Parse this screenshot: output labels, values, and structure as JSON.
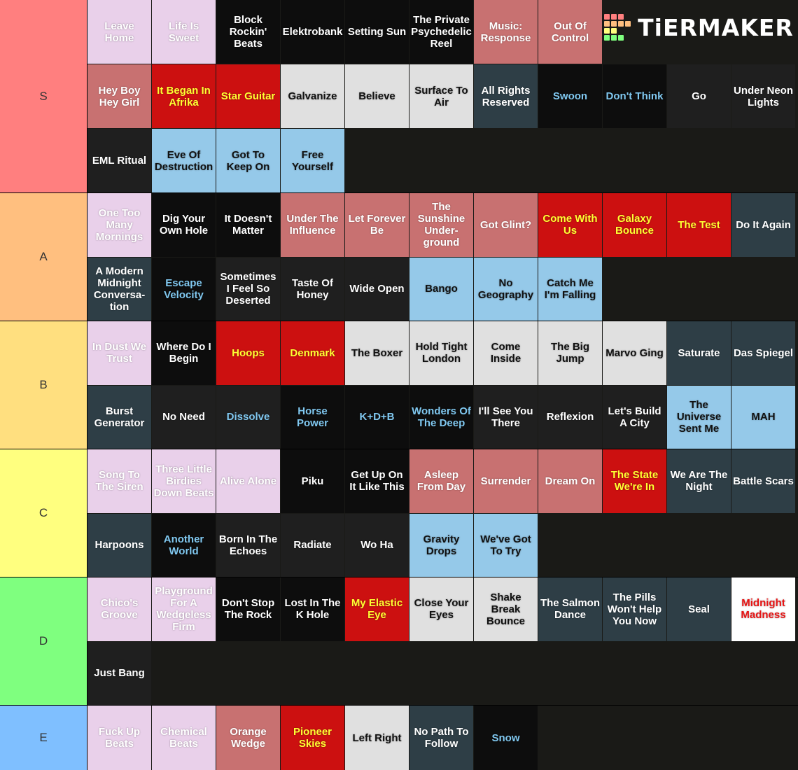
{
  "logo": "TiERMAKER",
  "tiers": [
    {
      "label": "S",
      "color": "#ff7f7f",
      "rows": [
        [
          {
            "text": "Leave Home",
            "bg": "#e9d0ea",
            "fg": "#ffffff"
          },
          {
            "text": "Life Is Sweet",
            "bg": "#e9d0ea",
            "fg": "#ffffff"
          },
          {
            "text": "Block Rockin' Beats",
            "bg": "#0d0d0d",
            "fg": "#ffffff"
          },
          {
            "text": "Elektrobank",
            "bg": "#0d0d0d",
            "fg": "#ffffff"
          },
          {
            "text": "Setting Sun",
            "bg": "#0d0d0d",
            "fg": "#ffffff"
          },
          {
            "text": "The Private Psychedelic Reel",
            "bg": "#0d0d0d",
            "fg": "#ffffff"
          },
          {
            "text": "Music: Response",
            "bg": "#c87171",
            "fg": "#ffffff"
          },
          {
            "text": "Out Of Control",
            "bg": "#c87171",
            "fg": "#ffffff"
          }
        ],
        [
          {
            "text": "Hey Boy Hey Girl",
            "bg": "#c87171",
            "fg": "#ffffff"
          },
          {
            "text": "It Began In Afrika",
            "bg": "#cc1010",
            "fg": "#ffff33"
          },
          {
            "text": "Star Guitar",
            "bg": "#cc1010",
            "fg": "#ffff33"
          },
          {
            "text": "Galvanize",
            "bg": "#e0e0e0",
            "fg": "#111111"
          },
          {
            "text": "Believe",
            "bg": "#e0e0e0",
            "fg": "#111111"
          },
          {
            "text": "Surface To Air",
            "bg": "#e0e0e0",
            "fg": "#111111"
          },
          {
            "text": "All Rights Reserved",
            "bg": "#2e3e46",
            "fg": "#ffffff"
          },
          {
            "text": "Swoon",
            "bg": "#0d0d0d",
            "fg": "#80c8f0"
          },
          {
            "text": "Don't Think",
            "bg": "#0d0d0d",
            "fg": "#80c8f0"
          },
          {
            "text": "Go",
            "bg": "#1f1f1f",
            "fg": "#ffffff"
          },
          {
            "text": "Under Neon Lights",
            "bg": "#1f1f1f",
            "fg": "#ffffff"
          }
        ],
        [
          {
            "text": "EML Ritual",
            "bg": "#1f1f1f",
            "fg": "#ffffff"
          },
          {
            "text": "Eve Of Destruction",
            "bg": "#95c9e9",
            "fg": "#111111"
          },
          {
            "text": "Got To Keep On",
            "bg": "#95c9e9",
            "fg": "#111111"
          },
          {
            "text": "Free Yourself",
            "bg": "#95c9e9",
            "fg": "#111111"
          }
        ]
      ]
    },
    {
      "label": "A",
      "color": "#ffbf7f",
      "rows": [
        [
          {
            "text": "One Too Many Mornings",
            "bg": "#e9d0ea",
            "fg": "#ffffff"
          },
          {
            "text": "Dig Your Own Hole",
            "bg": "#0d0d0d",
            "fg": "#ffffff"
          },
          {
            "text": "It Doesn't Matter",
            "bg": "#0d0d0d",
            "fg": "#ffffff"
          },
          {
            "text": "Under The Influence",
            "bg": "#c87171",
            "fg": "#ffffff"
          },
          {
            "text": "Let Forever Be",
            "bg": "#c87171",
            "fg": "#ffffff"
          },
          {
            "text": "The Sunshine Under­ground",
            "bg": "#c87171",
            "fg": "#ffffff"
          },
          {
            "text": "Got Glint?",
            "bg": "#c87171",
            "fg": "#ffffff"
          },
          {
            "text": "Come With Us",
            "bg": "#cc1010",
            "fg": "#ffff33"
          },
          {
            "text": "Galaxy Bounce",
            "bg": "#cc1010",
            "fg": "#ffff33"
          },
          {
            "text": "The Test",
            "bg": "#cc1010",
            "fg": "#ffff33"
          },
          {
            "text": "Do It Again",
            "bg": "#2e3e46",
            "fg": "#ffffff"
          }
        ],
        [
          {
            "text": "A Modern Midnight Conversa­tion",
            "bg": "#2e3e46",
            "fg": "#ffffff"
          },
          {
            "text": "Escape Velocity",
            "bg": "#0d0d0d",
            "fg": "#80c8f0"
          },
          {
            "text": "Sometimes I Feel So Deserted",
            "bg": "#1f1f1f",
            "fg": "#ffffff"
          },
          {
            "text": "Taste Of Honey",
            "bg": "#1f1f1f",
            "fg": "#ffffff"
          },
          {
            "text": "Wide Open",
            "bg": "#1f1f1f",
            "fg": "#ffffff"
          },
          {
            "text": "Bango",
            "bg": "#95c9e9",
            "fg": "#111111"
          },
          {
            "text": "No Geography",
            "bg": "#95c9e9",
            "fg": "#111111"
          },
          {
            "text": "Catch Me I'm Falling",
            "bg": "#95c9e9",
            "fg": "#111111"
          }
        ]
      ]
    },
    {
      "label": "B",
      "color": "#ffdf7f",
      "rows": [
        [
          {
            "text": "In Dust We Trust",
            "bg": "#e9d0ea",
            "fg": "#ffffff"
          },
          {
            "text": "Where Do I Begin",
            "bg": "#0d0d0d",
            "fg": "#ffffff"
          },
          {
            "text": "Hoops",
            "bg": "#cc1010",
            "fg": "#ffff33"
          },
          {
            "text": "Denmark",
            "bg": "#cc1010",
            "fg": "#ffff33"
          },
          {
            "text": "The Boxer",
            "bg": "#e0e0e0",
            "fg": "#111111"
          },
          {
            "text": "Hold Tight London",
            "bg": "#e0e0e0",
            "fg": "#111111"
          },
          {
            "text": "Come Inside",
            "bg": "#e0e0e0",
            "fg": "#111111"
          },
          {
            "text": "The Big Jump",
            "bg": "#e0e0e0",
            "fg": "#111111"
          },
          {
            "text": "Marvo Ging",
            "bg": "#e0e0e0",
            "fg": "#111111"
          },
          {
            "text": "Saturate",
            "bg": "#2e3e46",
            "fg": "#ffffff"
          },
          {
            "text": "Das Spiegel",
            "bg": "#2e3e46",
            "fg": "#ffffff"
          }
        ],
        [
          {
            "text": "Burst Generator",
            "bg": "#2e3e46",
            "fg": "#ffffff"
          },
          {
            "text": "No Need",
            "bg": "#1f1f1f",
            "fg": "#ffffff"
          },
          {
            "text": "Dissolve",
            "bg": "#1f1f1f",
            "fg": "#80c8f0"
          },
          {
            "text": "Horse Power",
            "bg": "#0d0d0d",
            "fg": "#80c8f0"
          },
          {
            "text": "K+D+B",
            "bg": "#0d0d0d",
            "fg": "#80c8f0"
          },
          {
            "text": "Wonders Of The Deep",
            "bg": "#0d0d0d",
            "fg": "#80c8f0"
          },
          {
            "text": "I'll See You There",
            "bg": "#1f1f1f",
            "fg": "#ffffff"
          },
          {
            "text": "Reflexion",
            "bg": "#1f1f1f",
            "fg": "#ffffff"
          },
          {
            "text": "Let's Build A City",
            "bg": "#1f1f1f",
            "fg": "#ffffff"
          },
          {
            "text": "The Universe Sent Me",
            "bg": "#95c9e9",
            "fg": "#111111"
          },
          {
            "text": "MAH",
            "bg": "#95c9e9",
            "fg": "#111111"
          }
        ]
      ]
    },
    {
      "label": "C",
      "color": "#ffff7f",
      "rows": [
        [
          {
            "text": "Song To The Siren",
            "bg": "#e9d0ea",
            "fg": "#ffffff"
          },
          {
            "text": "Three Little Birdies Down Beats",
            "bg": "#e9d0ea",
            "fg": "#ffffff"
          },
          {
            "text": "Alive Alone",
            "bg": "#e9d0ea",
            "fg": "#ffffff"
          },
          {
            "text": "Piku",
            "bg": "#0d0d0d",
            "fg": "#ffffff"
          },
          {
            "text": "Get Up On It Like This",
            "bg": "#0d0d0d",
            "fg": "#ffffff"
          },
          {
            "text": "Asleep From Day",
            "bg": "#c87171",
            "fg": "#ffffff"
          },
          {
            "text": "Surrender",
            "bg": "#c87171",
            "fg": "#ffffff"
          },
          {
            "text": "Dream On",
            "bg": "#c87171",
            "fg": "#ffffff"
          },
          {
            "text": "The State We're In",
            "bg": "#cc1010",
            "fg": "#ffff33"
          },
          {
            "text": "We Are The Night",
            "bg": "#2e3e46",
            "fg": "#ffffff"
          },
          {
            "text": "Battle Scars",
            "bg": "#2e3e46",
            "fg": "#ffffff"
          }
        ],
        [
          {
            "text": "Harpoons",
            "bg": "#2e3e46",
            "fg": "#ffffff"
          },
          {
            "text": "Another World",
            "bg": "#0d0d0d",
            "fg": "#80c8f0"
          },
          {
            "text": "Born In The Echoes",
            "bg": "#1f1f1f",
            "fg": "#ffffff"
          },
          {
            "text": "Radiate",
            "bg": "#1f1f1f",
            "fg": "#ffffff"
          },
          {
            "text": "Wo Ha",
            "bg": "#1f1f1f",
            "fg": "#ffffff"
          },
          {
            "text": "Gravity Drops",
            "bg": "#95c9e9",
            "fg": "#111111"
          },
          {
            "text": "We've Got To Try",
            "bg": "#95c9e9",
            "fg": "#111111"
          }
        ]
      ]
    },
    {
      "label": "D",
      "color": "#7fff7f",
      "rows": [
        [
          {
            "text": "Chico's Groove",
            "bg": "#e9d0ea",
            "fg": "#ffffff"
          },
          {
            "text": "Playground For A Wedgeless Firm",
            "bg": "#e9d0ea",
            "fg": "#ffffff"
          },
          {
            "text": "Don't Stop The Rock",
            "bg": "#0d0d0d",
            "fg": "#ffffff"
          },
          {
            "text": "Lost In The K Hole",
            "bg": "#0d0d0d",
            "fg": "#ffffff"
          },
          {
            "text": "My Elastic Eye",
            "bg": "#cc1010",
            "fg": "#ffff33"
          },
          {
            "text": "Close Your Eyes",
            "bg": "#e0e0e0",
            "fg": "#111111"
          },
          {
            "text": "Shake Break Bounce",
            "bg": "#e0e0e0",
            "fg": "#111111"
          },
          {
            "text": "The Salmon Dance",
            "bg": "#2e3e46",
            "fg": "#ffffff"
          },
          {
            "text": "The Pills Won't Help You Now",
            "bg": "#2e3e46",
            "fg": "#ffffff"
          },
          {
            "text": "Seal",
            "bg": "#2e3e46",
            "fg": "#ffffff"
          },
          {
            "text": "Midnight Madness",
            "bg": "#ffffff",
            "fg": "#e81414"
          }
        ],
        [
          {
            "text": "Just Bang",
            "bg": "#1f1f1f",
            "fg": "#ffffff"
          }
        ]
      ]
    },
    {
      "label": "E",
      "color": "#7fbfff",
      "rows": [
        [
          {
            "text": "Fuck Up Beats",
            "bg": "#e9d0ea",
            "fg": "#ffffff"
          },
          {
            "text": "Chemical Beats",
            "bg": "#e9d0ea",
            "fg": "#ffffff"
          },
          {
            "text": "Orange Wedge",
            "bg": "#c87171",
            "fg": "#ffffff"
          },
          {
            "text": "Pioneer Skies",
            "bg": "#cc1010",
            "fg": "#ffff33"
          },
          {
            "text": "Left Right",
            "bg": "#e0e0e0",
            "fg": "#111111"
          },
          {
            "text": "No Path To Follow",
            "bg": "#2e3e46",
            "fg": "#ffffff"
          },
          {
            "text": "Snow",
            "bg": "#0d0d0d",
            "fg": "#80c8f0"
          }
        ]
      ]
    }
  ]
}
